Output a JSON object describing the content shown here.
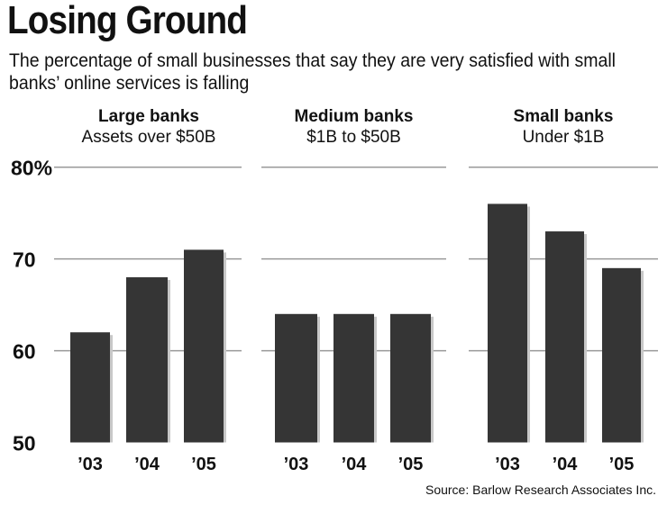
{
  "title": "Losing Ground",
  "subtitle": "The percentage of small businesses that say they are very satisfied with small banks’ online services is falling",
  "source": "Source: Barlow Research Associates Inc.",
  "chart_data": {
    "type": "bar",
    "ylim": [
      50,
      80
    ],
    "yticks": [
      {
        "value": 80,
        "label": "80%"
      },
      {
        "value": 70,
        "label": "70"
      },
      {
        "value": 60,
        "label": "60"
      },
      {
        "value": 50,
        "label": "50"
      }
    ],
    "grid": true,
    "categories": [
      "’03",
      "’04",
      "’05"
    ],
    "panels": [
      {
        "title": "Large banks",
        "subtitle": "Assets over $50B",
        "values": [
          62,
          68,
          71
        ]
      },
      {
        "title": "Medium banks",
        "subtitle": "$1B to $50B",
        "values": [
          64,
          64,
          64
        ]
      },
      {
        "title": "Small banks",
        "subtitle": "Under  $1B",
        "values": [
          76,
          73,
          69
        ]
      }
    ],
    "colors": {
      "bar": "#353535",
      "shadow": "#c8c8c8",
      "grid": "#999999"
    }
  }
}
